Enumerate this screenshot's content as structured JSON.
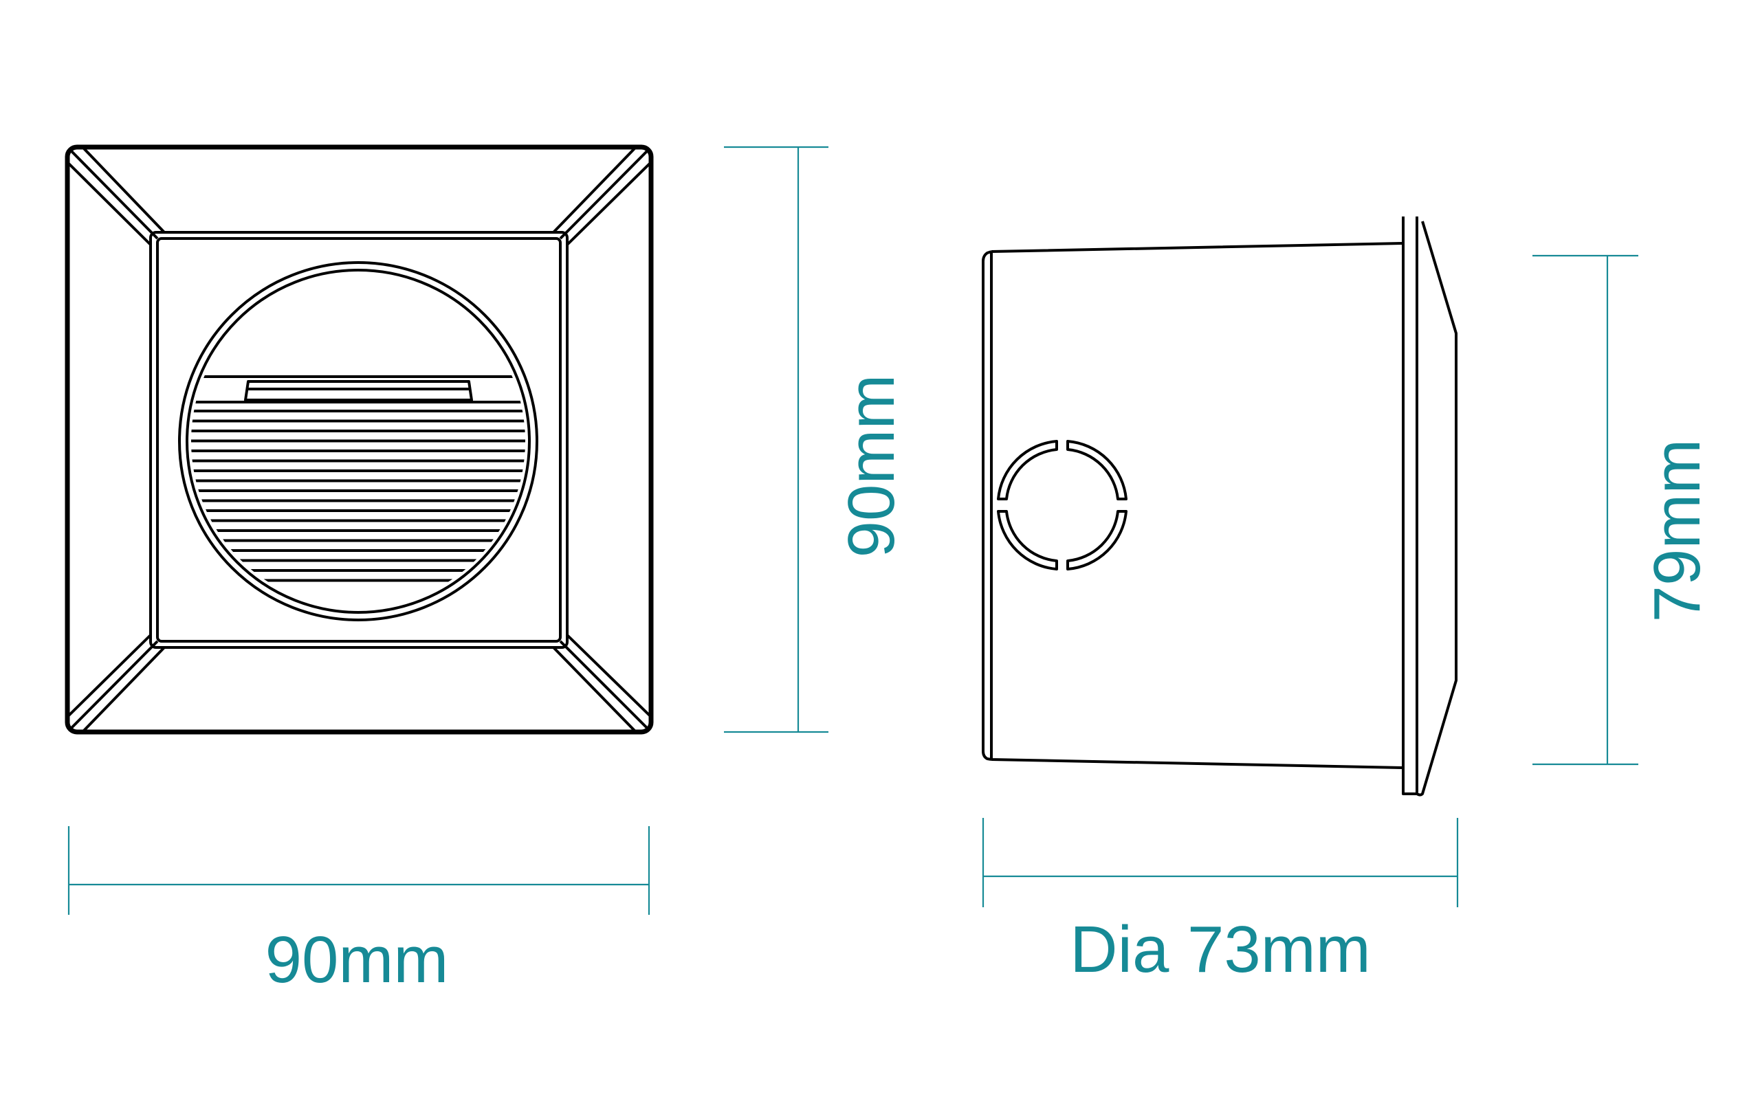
{
  "labels": {
    "front_width": "90mm",
    "front_height": "90mm",
    "side_diameter": "Dia 73mm",
    "side_height": "79mm"
  },
  "colors": {
    "dimension": "#168a96",
    "outline": "#000000"
  }
}
